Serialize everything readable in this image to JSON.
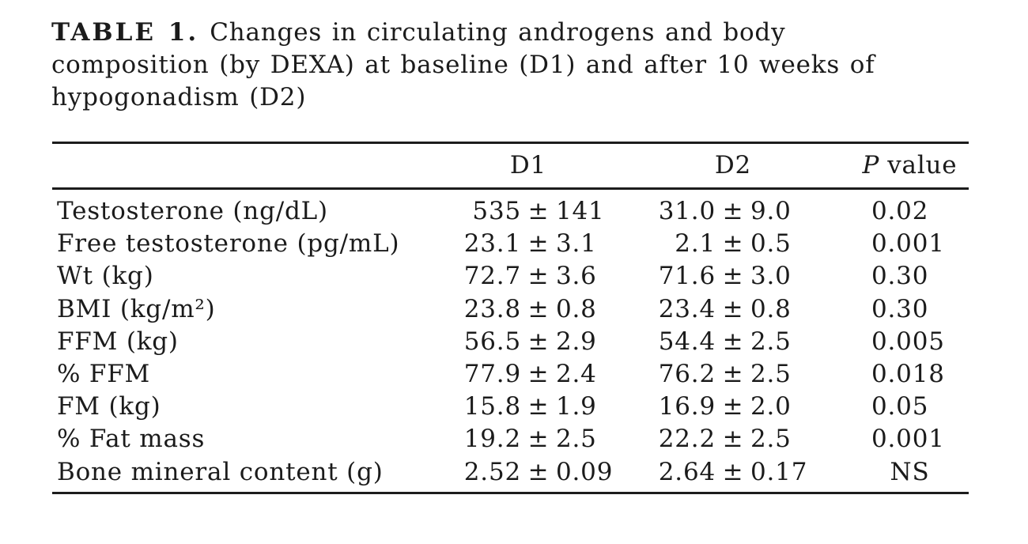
{
  "title": {
    "label": "TABLE 1.",
    "lines": [
      "Changes in circulating androgens and body",
      "composition (by DEXA) at baseline (D1) and after 10 weeks of",
      "hypogonadism (D2)"
    ]
  },
  "table": {
    "headers": {
      "d1": "D1",
      "d2": "D2",
      "p_italic": "P",
      "p_rest": "value"
    },
    "rows": [
      {
        "label": "Testosterone (ng/dL)",
        "d1": "535 ± 141",
        "d2": "31.0 ± 9.0",
        "p": "0.02"
      },
      {
        "label": "Free testosterone (pg/mL)",
        "d1": "23.1 ± 3.1",
        "d2": "2.1 ± 0.5",
        "p": "0.001"
      },
      {
        "label": "Wt (kg)",
        "d1": "72.7 ± 3.6",
        "d2": "71.6 ± 3.0",
        "p": "0.30"
      },
      {
        "label": "BMI (kg/m²)",
        "d1": "23.8 ± 0.8",
        "d2": "23.4 ± 0.8",
        "p": "0.30"
      },
      {
        "label": "FFM (kg)",
        "d1": "56.5 ± 2.9",
        "d2": "54.4 ± 2.5",
        "p": "0.005"
      },
      {
        "label": "% FFM",
        "d1": "77.9 ± 2.4",
        "d2": "76.2 ± 2.5",
        "p": "0.018"
      },
      {
        "label": "FM (kg)",
        "d1": "15.8 ± 1.9",
        "d2": "16.9 ± 2.0",
        "p": "0.05"
      },
      {
        "label": "% Fat mass",
        "d1": "19.2 ± 2.5",
        "d2": "22.2 ± 2.5",
        "p": "0.001"
      },
      {
        "label": "Bone mineral content (g)",
        "d1": "2.52 ± 0.09",
        "d2": "2.64 ± 0.17",
        "p": "NS"
      }
    ]
  },
  "colors": {
    "text": "#1b1b1b",
    "rule": "#1c1c1c",
    "background": "#ffffff"
  }
}
